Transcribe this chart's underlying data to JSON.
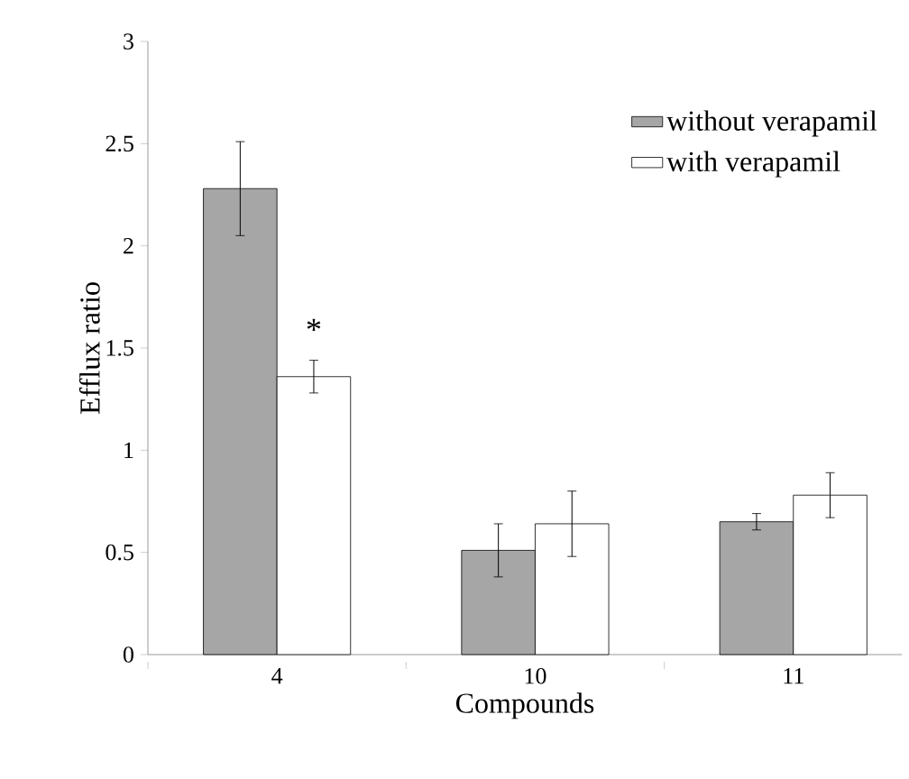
{
  "chart_data": {
    "type": "bar",
    "xlabel": "Compounds",
    "ylabel": "Efflux  ratio",
    "categories": [
      "4",
      "10",
      "11"
    ],
    "series": [
      {
        "name": "without verapamil",
        "color": "#a6a6a6",
        "values": [
          2.28,
          0.51,
          0.65
        ],
        "errors": [
          0.23,
          0.13,
          0.04
        ]
      },
      {
        "name": "with verapamil",
        "color": "#ffffff",
        "values": [
          1.36,
          0.64,
          0.78
        ],
        "errors": [
          0.08,
          0.16,
          0.11
        ]
      }
    ],
    "ylim": [
      0,
      3
    ],
    "yticks": [
      0,
      0.5,
      1,
      1.5,
      2,
      2.5,
      3
    ],
    "grid": false,
    "legend": "top right",
    "annotations": [
      {
        "text": "*",
        "x": "4",
        "y": 1.59
      }
    ]
  }
}
